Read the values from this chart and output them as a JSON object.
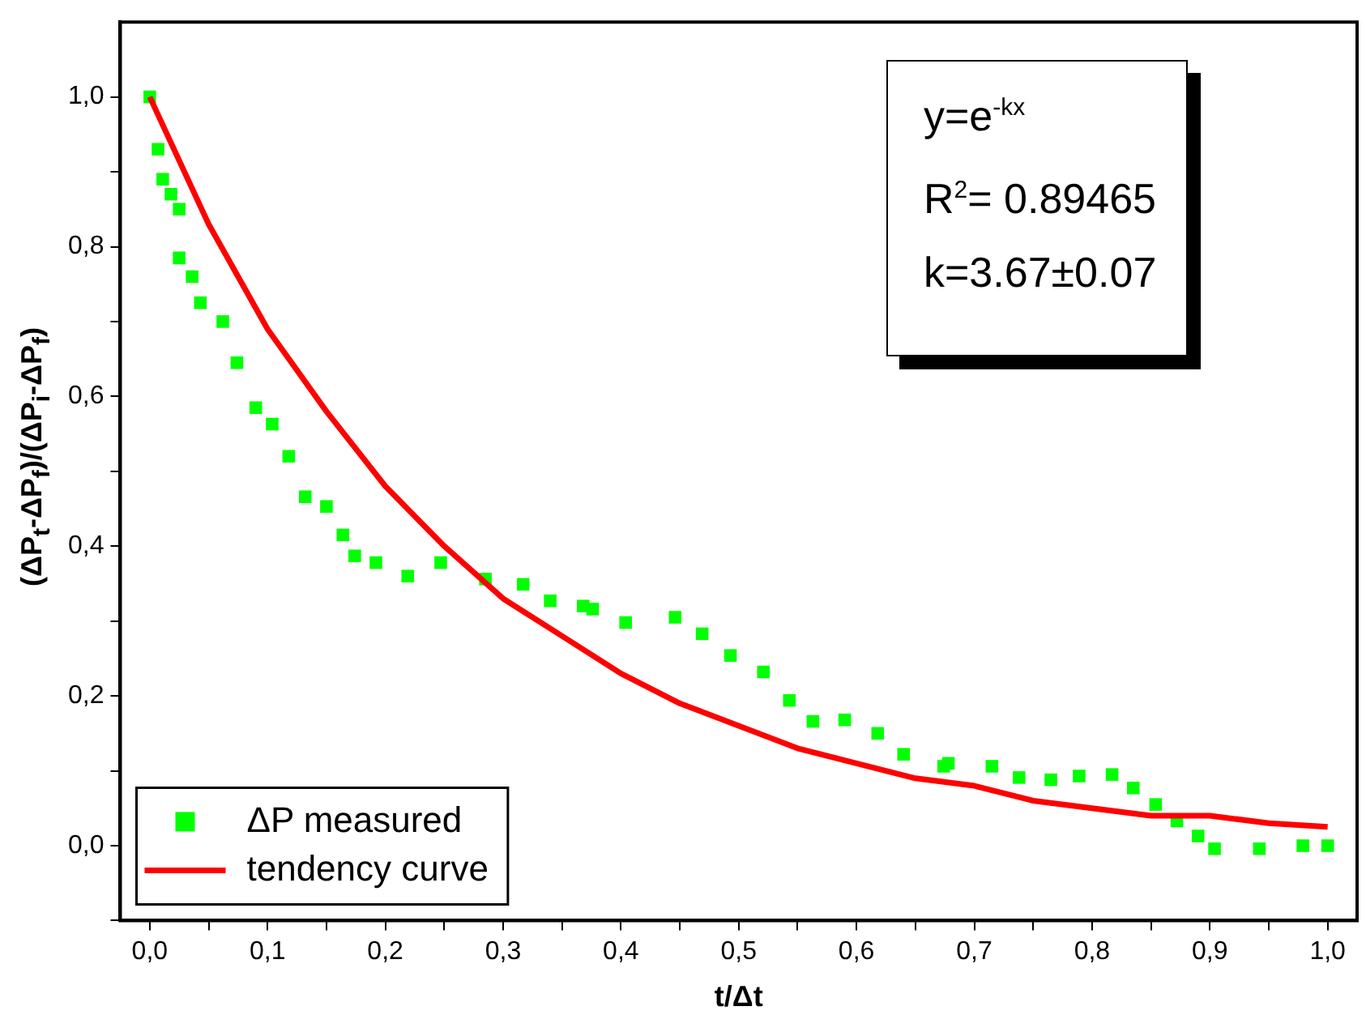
{
  "chart_data": {
    "type": "scatter",
    "xlabel": "t/Δt",
    "ylabel": "(ΔP$_{t}$-ΔP$_{f}$)/(ΔP$_{i}$-ΔP$_{f}$)",
    "xlim": [
      -0.025,
      1.025
    ],
    "ylim": [
      -0.1,
      1.1
    ],
    "xticks": [
      {
        "value": 0,
        "label": "0,0"
      },
      {
        "value": 0.05,
        "label": null
      },
      {
        "value": 0.1,
        "label": "0,1"
      },
      {
        "value": 0.15,
        "label": null
      },
      {
        "value": 0.2,
        "label": "0,2"
      },
      {
        "value": 0.25,
        "label": null
      },
      {
        "value": 0.3,
        "label": "0,3"
      },
      {
        "value": 0.35,
        "label": null
      },
      {
        "value": 0.4,
        "label": "0,4"
      },
      {
        "value": 0.45,
        "label": null
      },
      {
        "value": 0.5,
        "label": "0,5"
      },
      {
        "value": 0.55,
        "label": null
      },
      {
        "value": 0.6,
        "label": "0,6"
      },
      {
        "value": 0.65,
        "label": null
      },
      {
        "value": 0.7,
        "label": "0,7"
      },
      {
        "value": 0.75,
        "label": null
      },
      {
        "value": 0.8,
        "label": "0,8"
      },
      {
        "value": 0.85,
        "label": null
      },
      {
        "value": 0.9,
        "label": "0,9"
      },
      {
        "value": 0.95,
        "label": null
      },
      {
        "value": 1,
        "label": "1,0"
      }
    ],
    "yticks": [
      {
        "value": -0.1,
        "label": null
      },
      {
        "value": 0,
        "label": "0,0"
      },
      {
        "value": 0.1,
        "label": null
      },
      {
        "value": 0.2,
        "label": "0,2"
      },
      {
        "value": 0.3,
        "label": null
      },
      {
        "value": 0.4,
        "label": "0,4"
      },
      {
        "value": 0.5,
        "label": null
      },
      {
        "value": 0.6,
        "label": "0,6"
      },
      {
        "value": 0.7,
        "label": null
      },
      {
        "value": 0.8,
        "label": "0,8"
      },
      {
        "value": 0.9,
        "label": null
      },
      {
        "value": 1,
        "label": "1,0"
      }
    ],
    "grid": false,
    "legend": "bottom left",
    "annotations": [
      "y=e$^{-kx}$",
      "R$^{2}$= 0.89465",
      "k=3.67±0.07"
    ],
    "series": [
      {
        "name": "ΔP measured",
        "type": "scatter",
        "marker": "square",
        "color": "#00ff00",
        "x": [
          0,
          0.007,
          0.011,
          0.018,
          0.025,
          0.025,
          0.036,
          0.043,
          0.062,
          0.074,
          0.09,
          0.104,
          0.118,
          0.132,
          0.15,
          0.164,
          0.174,
          0.192,
          0.219,
          0.247,
          0.285,
          0.317,
          0.34,
          0.368,
          0.376,
          0.404,
          0.446,
          0.469,
          0.493,
          0.521,
          0.543,
          0.563,
          0.59,
          0.618,
          0.64,
          0.674,
          0.678,
          0.715,
          0.738,
          0.765,
          0.789,
          0.817,
          0.835,
          0.854,
          0.872,
          0.89,
          0.904,
          0.942,
          0.979,
          1.0
        ],
        "values": [
          1.0,
          0.93,
          0.89,
          0.87,
          0.85,
          0.785,
          0.76,
          0.725,
          0.7,
          0.645,
          0.585,
          0.563,
          0.52,
          0.466,
          0.453,
          0.415,
          0.387,
          0.378,
          0.36,
          0.378,
          0.356,
          0.349,
          0.327,
          0.32,
          0.316,
          0.298,
          0.305,
          0.283,
          0.254,
          0.232,
          0.194,
          0.166,
          0.168,
          0.15,
          0.122,
          0.106,
          0.11,
          0.106,
          0.091,
          0.088,
          0.093,
          0.095,
          0.077,
          0.055,
          0.033,
          0.013,
          -0.004,
          -0.004,
          0,
          0
        ]
      },
      {
        "name": "tendency curve",
        "type": "line",
        "marker": "none",
        "line_style": "solid",
        "color": "#ff0000",
        "x": [
          0,
          0.05,
          0.1,
          0.15,
          0.2,
          0.25,
          0.3,
          0.35,
          0.4,
          0.45,
          0.5,
          0.55,
          0.6,
          0.65,
          0.7,
          0.75,
          0.8,
          0.85,
          0.9,
          0.95,
          1.0
        ],
        "values": [
          1,
          0.83,
          0.69,
          0.58,
          0.48,
          0.4,
          0.33,
          0.28,
          0.23,
          0.19,
          0.16,
          0.13,
          0.11,
          0.09,
          0.08,
          0.06,
          0.05,
          0.04,
          0.04,
          0.03,
          0.025
        ]
      }
    ]
  }
}
